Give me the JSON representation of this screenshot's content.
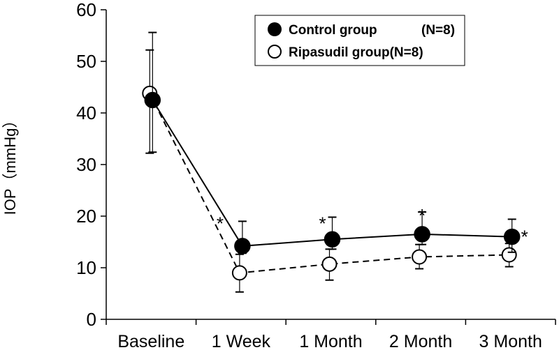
{
  "chart_data": {
    "type": "line",
    "ylabel": "IOP（mmHg）",
    "categories": [
      "Baseline",
      "1 Week",
      "1 Month",
      "2 Month",
      "3 Month"
    ],
    "ylim": [
      0,
      60
    ],
    "yticks": [
      0,
      10,
      20,
      30,
      40,
      50,
      60
    ],
    "grid": false,
    "legend_position": "top-right",
    "series": [
      {
        "name": "Control group",
        "n_label": "(N=8)",
        "marker": "filled-circle",
        "line": "solid",
        "color": "#000000",
        "values": [
          42.5,
          14.2,
          15.5,
          16.5,
          16.0
        ],
        "err_high": [
          55.6,
          19.0,
          19.8,
          20.8,
          19.4
        ],
        "err_low": [
          32.4,
          12.8,
          13.6,
          14.5,
          13.0
        ]
      },
      {
        "name": "Ripasudil group(N=8)",
        "marker": "open-circle",
        "line": "dashed",
        "color": "#000000",
        "values": [
          43.8,
          9.0,
          10.7,
          12.1,
          12.5
        ],
        "err_high": [
          52.2,
          12.6,
          13.6,
          14.5,
          14.7
        ],
        "err_low": [
          32.2,
          5.3,
          7.6,
          9.8,
          10.2
        ]
      }
    ],
    "annotations": [
      {
        "category": "1 Week",
        "text": "*"
      },
      {
        "category": "1 Month",
        "text": "*"
      },
      {
        "category": "2 Month",
        "text": "*"
      },
      {
        "category": "3 Month",
        "text": "*"
      }
    ]
  }
}
